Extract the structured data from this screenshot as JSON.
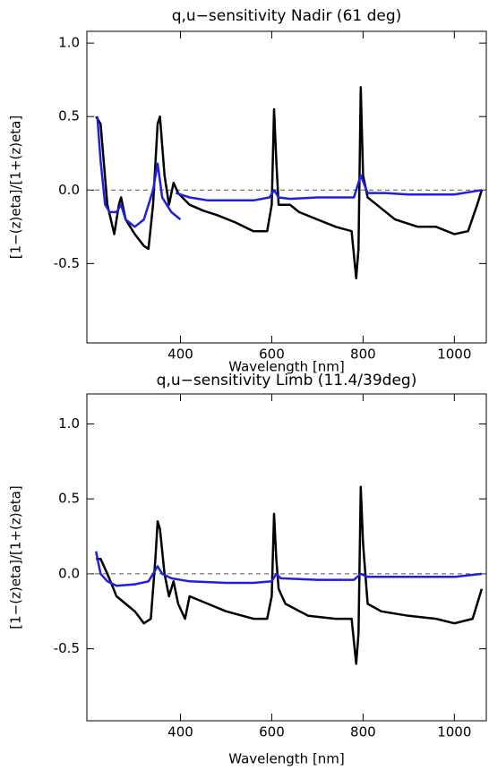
{
  "chart_data": [
    {
      "type": "line",
      "title": "q,u−sensitivity Nadir (61 deg)",
      "x_label": "Wavelength [nm]",
      "y_label": "[1−(z)eta]/[1+(z)eta]",
      "xlim": [
        195,
        1070
      ],
      "ylim": [
        -1.04,
        1.08
      ],
      "xticks": [
        400,
        600,
        800,
        1000
      ],
      "yticks": [
        -0.5,
        {
          "value": 0,
          "label": "0.0"
        },
        0.5,
        {
          "value": 1,
          "label": "1.0"
        }
      ],
      "hline": 0,
      "series": [
        {
          "color": "#000000",
          "x": [
            215,
            225,
            240,
            255,
            265,
            270,
            280,
            300,
            320,
            330,
            340,
            350,
            355,
            365,
            375,
            385,
            395,
            420,
            450,
            480,
            520,
            560,
            590,
            600,
            605,
            610,
            615,
            625,
            640,
            660,
            700,
            740,
            775,
            785,
            790,
            795,
            800,
            810,
            830,
            870,
            920,
            960,
            1000,
            1030,
            1050,
            1060
          ],
          "values": [
            0.5,
            0.45,
            -0.1,
            -0.3,
            -0.1,
            -0.05,
            -0.2,
            -0.3,
            -0.38,
            -0.4,
            -0.1,
            0.45,
            0.5,
            0.1,
            -0.1,
            0.05,
            -0.02,
            -0.1,
            -0.14,
            -0.17,
            -0.22,
            -0.28,
            -0.28,
            -0.1,
            0.55,
            0.2,
            -0.1,
            -0.1,
            -0.1,
            -0.15,
            -0.2,
            -0.25,
            -0.28,
            -0.6,
            -0.4,
            0.7,
            0.1,
            -0.05,
            -0.1,
            -0.2,
            -0.25,
            -0.25,
            -0.3,
            -0.28,
            -0.1,
            0
          ]
        },
        {
          "color": "#1f1fe0",
          "x": [
            218,
            225,
            235,
            245,
            260,
            270,
            280,
            300,
            320,
            340,
            350,
            360,
            370,
            380,
            400,
            null,
            390,
            420,
            460,
            500,
            560,
            595,
            605,
            615,
            640,
            700,
            780,
            795,
            810,
            850,
            900,
            1000,
            1060
          ],
          "values": [
            0.5,
            0.2,
            -0.1,
            -0.15,
            -0.15,
            -0.1,
            -0.2,
            -0.25,
            -0.2,
            0,
            0.18,
            -0.05,
            -0.1,
            -0.15,
            -0.2,
            null,
            -0.02,
            -0.05,
            -0.07,
            -0.07,
            -0.07,
            -0.05,
            0,
            -0.05,
            -0.06,
            -0.05,
            -0.05,
            0.1,
            -0.02,
            -0.02,
            -0.03,
            -0.03,
            0
          ]
        }
      ]
    },
    {
      "type": "line",
      "title": "q,u−sensitivity Limb (11.4/39deg)",
      "x_label": "Wavelength [nm]",
      "y_label": "[1−(z)eta]/[1+(z)eta]",
      "xlim": [
        195,
        1070
      ],
      "ylim": [
        -0.98,
        1.2
      ],
      "xticks": [
        400,
        600,
        800,
        1000
      ],
      "yticks": [
        -0.5,
        {
          "value": 0,
          "label": "0.0"
        },
        0.5,
        {
          "value": 1,
          "label": "1.0"
        }
      ],
      "hline": 0,
      "series": [
        {
          "color": "#000000",
          "x": [
            215,
            225,
            240,
            260,
            280,
            300,
            320,
            335,
            345,
            350,
            355,
            365,
            375,
            385,
            395,
            410,
            420,
            460,
            500,
            560,
            590,
            600,
            605,
            610,
            615,
            630,
            680,
            740,
            775,
            785,
            790,
            795,
            800,
            810,
            840,
            900,
            960,
            1000,
            1040,
            1060
          ],
          "values": [
            0.1,
            0.1,
            0,
            -0.15,
            -0.2,
            -0.25,
            -0.33,
            -0.3,
            0.1,
            0.35,
            0.3,
            0,
            -0.15,
            -0.05,
            -0.2,
            -0.3,
            -0.15,
            -0.2,
            -0.25,
            -0.3,
            -0.3,
            -0.15,
            0.4,
            0.1,
            -0.1,
            -0.2,
            -0.28,
            -0.3,
            -0.3,
            -0.6,
            -0.4,
            0.58,
            0.2,
            -0.2,
            -0.25,
            -0.28,
            -0.3,
            -0.33,
            -0.3,
            -0.1
          ]
        },
        {
          "color": "#1f1fe0",
          "x": [
            215,
            225,
            240,
            260,
            300,
            330,
            350,
            360,
            380,
            420,
            500,
            560,
            600,
            610,
            620,
            700,
            780,
            795,
            810,
            900,
            1000,
            1060
          ],
          "values": [
            0.15,
            0,
            -0.05,
            -0.08,
            -0.07,
            -0.05,
            0.05,
            0,
            -0.03,
            -0.05,
            -0.06,
            -0.06,
            -0.05,
            0,
            -0.03,
            -0.04,
            -0.04,
            0,
            -0.02,
            -0.02,
            -0.02,
            0
          ]
        }
      ]
    }
  ]
}
